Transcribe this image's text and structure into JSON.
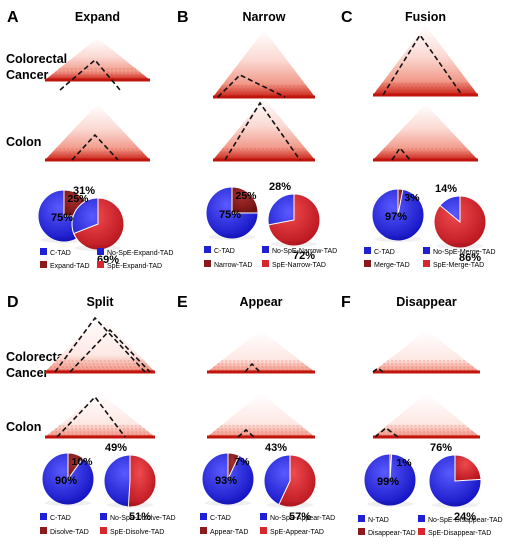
{
  "colors": {
    "blue": "#1f1fd6",
    "red": "#d8262f",
    "darkred": "#8b1a1a",
    "heat_light": "#fde3df",
    "heat_mid": "#f3a192",
    "heat_dark": "#c92116"
  },
  "row_labels": {
    "cancer_line1": "Colorectal",
    "cancer_line2": "Cancer",
    "colon": "Colon"
  },
  "panels": [
    {
      "letter": "A",
      "title": "Expand",
      "pie1": {
        "blue": 75,
        "red": 25,
        "label_blue": "75%",
        "label_red": "25%"
      },
      "pie2": {
        "blue": 31,
        "red": 69,
        "label_blue": "31%",
        "label_red": "69%"
      },
      "legend": [
        "C-TAD",
        "No-SpE-Expand-TAD",
        "Expand-TAD",
        "SpE-Expand-TAD"
      ]
    },
    {
      "letter": "B",
      "title": "Narrow",
      "pie1": {
        "blue": 75,
        "red": 25,
        "label_blue": "75%",
        "label_red": "25%"
      },
      "pie2": {
        "blue": 28,
        "red": 72,
        "label_blue": "28%",
        "label_red": "72%"
      },
      "legend": [
        "C-TAD",
        "No-SpE-Narrow-TAD",
        "Narrow-TAD",
        "SpE-Narrow-TAD"
      ]
    },
    {
      "letter": "C",
      "title": "Fusion",
      "pie1": {
        "blue": 97,
        "red": 3,
        "label_blue": "97%",
        "label_red": "3%"
      },
      "pie2": {
        "blue": 14,
        "red": 86,
        "label_blue": "14%",
        "label_red": "86%"
      },
      "legend": [
        "C-TAD",
        "No-SpE-Merge-TAD",
        "Merge-TAD",
        "SpE-Merge-TAD"
      ]
    },
    {
      "letter": "D",
      "title": "Split",
      "pie1": {
        "blue": 90,
        "red": 10,
        "label_blue": "90%",
        "label_red": "10%"
      },
      "pie2": {
        "blue": 49,
        "red": 51,
        "label_blue": "49%",
        "label_red": "51%"
      },
      "legend": [
        "C-TAD",
        "No-SpE-Disolve-TAD",
        "Disolve-TAD",
        "SpE-Disolve-TAD"
      ]
    },
    {
      "letter": "E",
      "title": "Appear",
      "pie1": {
        "blue": 93,
        "red": 7,
        "label_blue": "93%",
        "label_red": "7%"
      },
      "pie2": {
        "blue": 43,
        "red": 57,
        "label_blue": "43%",
        "label_red": "57%"
      },
      "legend": [
        "C-TAD",
        "No-SpE-Appear-TAD",
        "Appear-TAD",
        "SpE-Appear-TAD"
      ]
    },
    {
      "letter": "F",
      "title": "Disappear",
      "pie1": {
        "blue": 99,
        "red": 1,
        "label_blue": "99%",
        "label_red": "1%"
      },
      "pie2": {
        "blue": 76,
        "red": 24,
        "label_blue": "76%",
        "label_red": "24%"
      },
      "legend": [
        "N-TAD",
        "No-SpE-Disappear-TAD",
        "Disappear-TAD",
        "SpE-Disappear-TAD"
      ]
    }
  ]
}
